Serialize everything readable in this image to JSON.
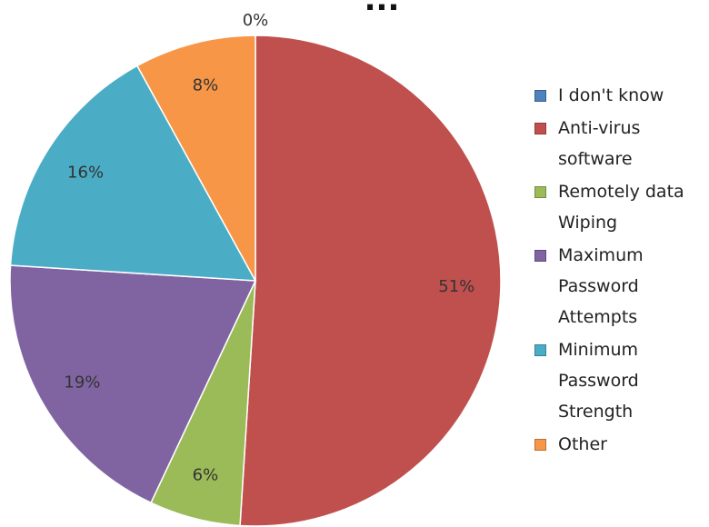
{
  "chart_data": {
    "type": "pie",
    "title_fragment": "...",
    "slices": [
      {
        "label": "I don't know",
        "value": 0,
        "display": "0%",
        "color": "#4f81bd"
      },
      {
        "label": "Anti-virus software",
        "value": 51,
        "display": "51%",
        "color": "#c0504d"
      },
      {
        "label": "Remotely data Wiping",
        "value": 6,
        "display": "6%",
        "color": "#9bbb59"
      },
      {
        "label": "Maximum Password Attempts",
        "value": 19,
        "display": "19%",
        "color": "#8064a2"
      },
      {
        "label": "Minimum Password Strength",
        "value": 16,
        "display": "16%",
        "color": "#4bacc6"
      },
      {
        "label": "Other",
        "value": 8,
        "display": "8%",
        "color": "#f79646"
      }
    ],
    "legend_position": "right"
  }
}
